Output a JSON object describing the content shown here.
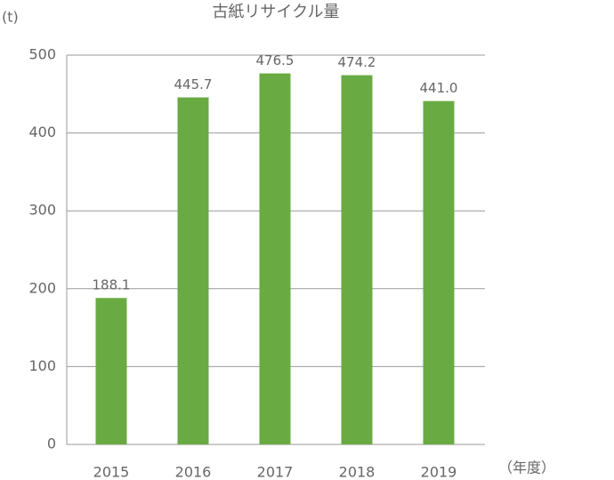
{
  "chart_data": {
    "type": "bar",
    "title": "古紙リサイクル量",
    "y_label": "(t)",
    "x_label": "（年度）",
    "categories": [
      "2015",
      "2016",
      "2017",
      "2018",
      "2019"
    ],
    "values": [
      188.1,
      445.7,
      476.5,
      474.2,
      441.0
    ],
    "value_labels": [
      "188.1",
      "445.7",
      "476.5",
      "474.2",
      "441.0"
    ],
    "color": "#6aaa43",
    "ylim": [
      0,
      500
    ],
    "yticks": [
      0,
      100,
      200,
      300,
      400,
      500
    ],
    "grid": true
  }
}
